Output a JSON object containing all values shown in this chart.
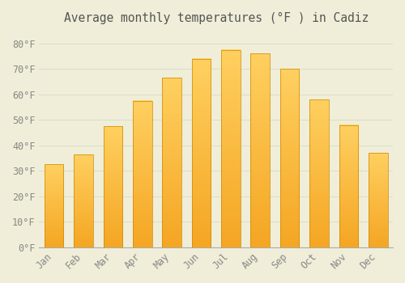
{
  "title": "Average monthly temperatures (°F ) in Cadiz",
  "months": [
    "Jan",
    "Feb",
    "Mar",
    "Apr",
    "May",
    "Jun",
    "Jul",
    "Aug",
    "Sep",
    "Oct",
    "Nov",
    "Dec"
  ],
  "values": [
    32.5,
    36.5,
    47.5,
    57.5,
    66.5,
    74.0,
    77.5,
    76.0,
    70.0,
    58.0,
    48.0,
    37.0
  ],
  "bar_color_bottom": "#F5A623",
  "bar_color_top": "#FFD060",
  "bar_edge_color": "#CC8800",
  "background_color": "#F0EED8",
  "grid_color": "#DDDDCC",
  "ylim": [
    0,
    85
  ],
  "yticks": [
    0,
    10,
    20,
    30,
    40,
    50,
    60,
    70,
    80
  ],
  "ytick_labels": [
    "0°F",
    "10°F",
    "20°F",
    "30°F",
    "40°F",
    "50°F",
    "60°F",
    "70°F",
    "80°F"
  ],
  "title_fontsize": 10.5,
  "tick_fontsize": 8.5,
  "bar_width": 0.65
}
